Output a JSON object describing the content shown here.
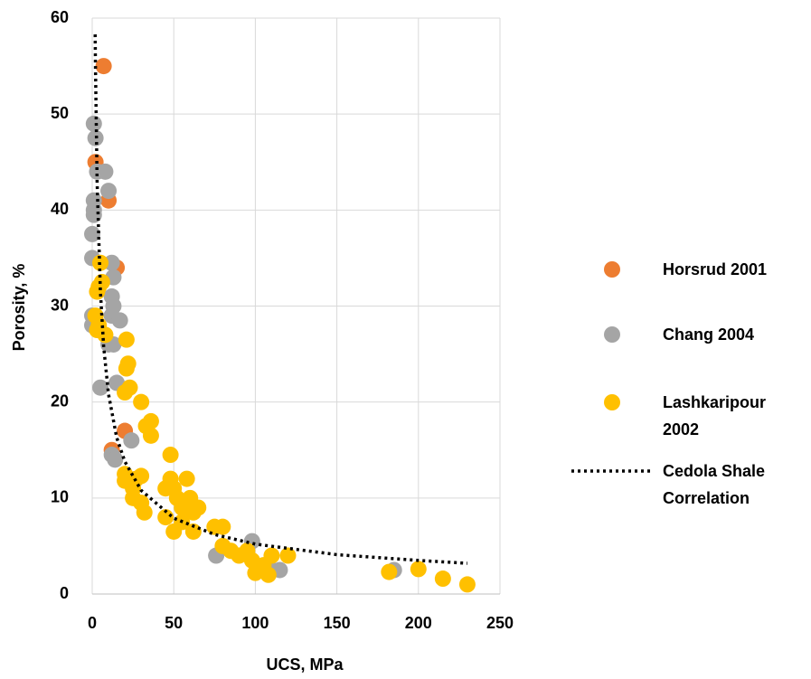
{
  "chart_data": {
    "type": "scatter",
    "xlabel": "UCS, MPa",
    "ylabel": "Porosity, %",
    "xlim": [
      0,
      250
    ],
    "ylim": [
      0,
      60
    ],
    "xticks": [
      0,
      50,
      100,
      150,
      200,
      250
    ],
    "yticks": [
      0,
      10,
      20,
      30,
      40,
      50,
      60
    ],
    "grid": true,
    "legend": "right",
    "series": [
      {
        "name": "Horsrud 2001",
        "color": "#ED7D31",
        "x": [
          7,
          2,
          10,
          15,
          20,
          12
        ],
        "values": [
          55,
          45,
          41,
          34,
          17,
          15
        ]
      },
      {
        "name": "Chang 2004",
        "color": "#A5A5A5",
        "x": [
          1,
          2,
          3,
          8,
          10,
          1,
          1,
          1,
          0,
          0,
          12,
          13,
          12,
          13,
          0,
          0,
          12,
          17,
          10,
          13,
          5,
          15,
          12,
          14,
          24,
          76,
          98,
          110,
          115,
          185
        ],
        "values": [
          49,
          47.5,
          44,
          44,
          42,
          41,
          40,
          39.5,
          37.5,
          35,
          34.5,
          33,
          31,
          30,
          29,
          28,
          29,
          28.5,
          26,
          26,
          21.5,
          22,
          14.5,
          14,
          16,
          4,
          5.5,
          2.5,
          2.5,
          2.5
        ]
      },
      {
        "name": "Lashkaripour 2002",
        "color": "#FFC000",
        "x": [
          5,
          4,
          6,
          3,
          2,
          4,
          3,
          8,
          21,
          22,
          21,
          23,
          20,
          30,
          33,
          36,
          36,
          20,
          20,
          27,
          30,
          25,
          25,
          30,
          32,
          45,
          48,
          48,
          50,
          45,
          50,
          52,
          55,
          55,
          58,
          60,
          62,
          65,
          62,
          75,
          80,
          80,
          85,
          90,
          95,
          98,
          100,
          105,
          108,
          110,
          120,
          182,
          200,
          215,
          230
        ],
        "values": [
          34.5,
          32,
          32.5,
          31.5,
          29,
          28,
          27.5,
          27,
          26.5,
          24,
          23.5,
          21.5,
          21,
          20,
          17.5,
          18,
          16.5,
          12.5,
          11.8,
          12,
          12.3,
          11,
          10,
          9.5,
          8.5,
          11,
          12,
          14.5,
          11,
          8,
          6.5,
          10,
          9,
          7.5,
          12,
          10,
          8.5,
          9,
          6.5,
          7,
          7,
          5,
          4.5,
          4,
          4.5,
          3.5,
          2.2,
          3,
          2,
          4,
          4,
          2.3,
          2.6,
          1.6,
          1
        ]
      },
      {
        "name": "Cedola Shale Correlation",
        "color": "#000000",
        "type": "line",
        "style": "dotted",
        "x": [
          1.8,
          2,
          3,
          5,
          7,
          10,
          15,
          20,
          30,
          50,
          75,
          100,
          150,
          200,
          230
        ],
        "values": [
          58.3,
          54.8,
          42.9,
          31.6,
          25.8,
          20.8,
          16.3,
          13.8,
          10.8,
          7.9,
          6.2,
          5.2,
          4.1,
          3.5,
          3.2
        ]
      }
    ]
  }
}
